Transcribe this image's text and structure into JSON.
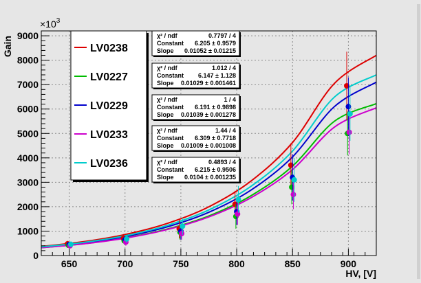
{
  "chart_data": {
    "type": "scatter",
    "ylabel": "Gain",
    "xlabel": "HV, [V]",
    "y_multiplier": "×10",
    "y_multiplier_exp": "3",
    "xlim": [
      625,
      925
    ],
    "ylim": [
      0,
      9200
    ],
    "x_ticks": [
      650,
      700,
      750,
      800,
      850,
      900
    ],
    "y_ticks": [
      0,
      1000,
      2000,
      3000,
      4000,
      5000,
      6000,
      7000,
      8000,
      9000
    ],
    "grid": true,
    "legend_position": "top-left",
    "series": [
      {
        "name": "LV0238",
        "color": "#dd0000",
        "x": [
          650,
          700,
          750,
          800,
          850,
          900
        ],
        "y": [
          480,
          700,
          1100,
          2100,
          3700,
          6950
        ],
        "yerr": [
          120,
          180,
          400,
          550,
          900,
          1400
        ],
        "fit": {
          "chi2_ndf_label": "χ² / ndf",
          "chi2_ndf": "0.7797 / 4",
          "constant_label": "Constant",
          "constant": "6.205 ± 0.9579",
          "slope_label": "Slope",
          "slope": "0.01052 ± 0.01215"
        },
        "curve_y": [
          370,
          565,
          860,
          1310,
          1995,
          3040,
          4630,
          7050,
          8200
        ]
      },
      {
        "name": "LV0227",
        "color": "#00bb00",
        "x": [
          650,
          700,
          750,
          800,
          850,
          900
        ],
        "y": [
          420,
          600,
          950,
          1600,
          2800,
          5000
        ],
        "yerr": [
          100,
          150,
          300,
          500,
          700,
          900
        ],
        "fit": {
          "chi2_ndf_label": "χ² / ndf",
          "chi2_ndf": "1.012 / 4",
          "constant_label": "Constant",
          "constant": "6.147 ± 1.128",
          "slope_label": "Slope",
          "slope": "0.01029 ± 0.001461"
        },
        "curve_y": [
          320,
          480,
          720,
          1080,
          1620,
          2440,
          3660,
          5500,
          6220
        ]
      },
      {
        "name": "LV0229",
        "color": "#0000cc",
        "x": [
          650,
          700,
          750,
          800,
          850,
          900
        ],
        "y": [
          450,
          650,
          1000,
          1800,
          3200,
          6100
        ],
        "yerr": [
          110,
          160,
          350,
          550,
          950,
          1200
        ],
        "fit": {
          "chi2_ndf_label": "χ² / ndf",
          "chi2_ndf": "1 / 4",
          "constant_label": "Constant",
          "constant": "6.191 ± 0.9898",
          "slope_label": "Slope",
          "slope": "0.01039 ± 0.001278"
        },
        "curve_y": [
          340,
          510,
          775,
          1170,
          1770,
          2670,
          4040,
          6100,
          7100
        ]
      },
      {
        "name": "LV0233",
        "color": "#cc00cc",
        "x": [
          650,
          700,
          750,
          800,
          850,
          900
        ],
        "y": [
          400,
          550,
          900,
          1700,
          2500,
          5050
        ],
        "yerr": [
          100,
          150,
          250,
          450,
          600,
          900
        ],
        "fit": {
          "chi2_ndf_label": "χ² / ndf",
          "chi2_ndf": "1.44 / 4",
          "constant_label": "Constant",
          "constant": "6.309 ± 0.7718",
          "slope_label": "Slope",
          "slope": "0.01009 ± 0.001008"
        },
        "curve_y": [
          320,
          475,
          710,
          1060,
          1580,
          2360,
          3520,
          5260,
          6050
        ]
      },
      {
        "name": "LV0236",
        "color": "#00cccc",
        "x": [
          650,
          700,
          750,
          800,
          850,
          900
        ],
        "y": [
          460,
          680,
          1200,
          2300,
          3100,
          5800
        ],
        "yerr": [
          110,
          170,
          350,
          550,
          900,
          1100
        ],
        "fit": {
          "chi2_ndf_label": "χ² / ndf",
          "chi2_ndf": "0.4893 / 4",
          "constant_label": "Constant",
          "constant": "6.215 ± 0.9506",
          "slope_label": "Slope",
          "slope": "0.0104 ± 0.001235"
        },
        "curve_y": [
          355,
          535,
          810,
          1230,
          1865,
          2825,
          4280,
          6490,
          7400
        ]
      }
    ],
    "curve_x": [
      625,
      662.5,
      700,
      737.5,
      775,
      812.5,
      850,
      887.5,
      925
    ]
  }
}
